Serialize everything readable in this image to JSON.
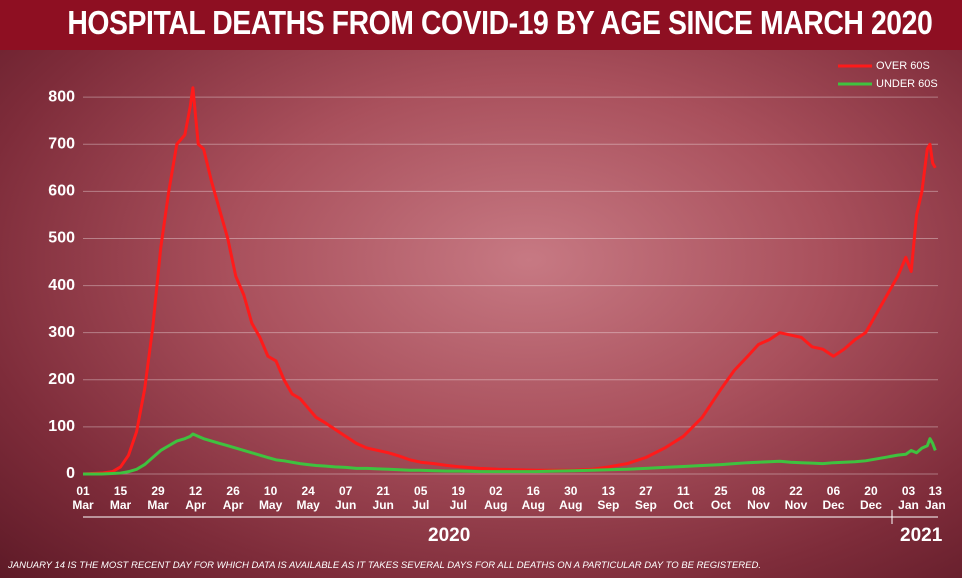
{
  "chart_data": {
    "type": "line",
    "title": "HOSPITAL DEATHS FROM COVID-19 BY AGE SINCE MARCH 2020",
    "x": [
      "2020-03-01",
      "2020-03-08",
      "2020-03-12",
      "2020-03-15",
      "2020-03-18",
      "2020-03-21",
      "2020-03-24",
      "2020-03-27",
      "2020-03-30",
      "2020-04-02",
      "2020-04-05",
      "2020-04-08",
      "2020-04-10",
      "2020-04-11",
      "2020-04-13",
      "2020-04-15",
      "2020-04-18",
      "2020-04-21",
      "2020-04-24",
      "2020-04-27",
      "2020-04-30",
      "2020-05-03",
      "2020-05-06",
      "2020-05-09",
      "2020-05-12",
      "2020-05-15",
      "2020-05-18",
      "2020-05-21",
      "2020-05-24",
      "2020-05-27",
      "2020-05-30",
      "2020-06-03",
      "2020-06-07",
      "2020-06-11",
      "2020-06-15",
      "2020-06-19",
      "2020-06-23",
      "2020-06-27",
      "2020-07-01",
      "2020-07-05",
      "2020-07-10",
      "2020-07-15",
      "2020-07-20",
      "2020-07-27",
      "2020-08-03",
      "2020-08-10",
      "2020-08-17",
      "2020-08-24",
      "2020-08-31",
      "2020-09-07",
      "2020-09-13",
      "2020-09-20",
      "2020-09-27",
      "2020-10-04",
      "2020-10-11",
      "2020-10-18",
      "2020-10-25",
      "2020-10-30",
      "2020-11-04",
      "2020-11-08",
      "2020-11-12",
      "2020-11-16",
      "2020-11-20",
      "2020-11-24",
      "2020-11-28",
      "2020-12-02",
      "2020-12-06",
      "2020-12-10",
      "2020-12-14",
      "2020-12-18",
      "2020-12-22",
      "2020-12-26",
      "2020-12-30",
      "2021-01-02",
      "2021-01-04",
      "2021-01-06",
      "2021-01-08",
      "2021-01-10",
      "2021-01-11",
      "2021-01-12",
      "2021-01-13"
    ],
    "series": [
      {
        "name": "OVER 60S",
        "color": "#ff1a1a",
        "values": [
          0,
          2,
          5,
          15,
          40,
          90,
          180,
          310,
          480,
          600,
          700,
          720,
          780,
          820,
          700,
          690,
          620,
          560,
          500,
          420,
          380,
          320,
          290,
          250,
          240,
          200,
          170,
          160,
          140,
          120,
          110,
          95,
          80,
          65,
          55,
          50,
          45,
          38,
          30,
          25,
          22,
          18,
          15,
          12,
          10,
          9,
          8,
          8,
          8,
          10,
          15,
          22,
          35,
          55,
          80,
          120,
          180,
          220,
          250,
          275,
          285,
          300,
          295,
          290,
          270,
          265,
          250,
          265,
          285,
          300,
          340,
          380,
          420,
          460,
          430,
          550,
          600,
          690,
          700,
          660,
          650
        ]
      },
      {
        "name": "UNDER 60S",
        "color": "#3fc23f",
        "values": [
          0,
          0,
          1,
          2,
          5,
          10,
          20,
          35,
          50,
          60,
          70,
          75,
          80,
          85,
          80,
          75,
          70,
          65,
          60,
          55,
          50,
          45,
          40,
          35,
          30,
          28,
          25,
          22,
          20,
          18,
          17,
          15,
          14,
          12,
          12,
          11,
          10,
          9,
          8,
          8,
          7,
          6,
          6,
          5,
          5,
          5,
          5,
          6,
          7,
          8,
          9,
          10,
          12,
          14,
          16,
          18,
          20,
          22,
          24,
          25,
          26,
          27,
          25,
          24,
          23,
          22,
          24,
          25,
          26,
          28,
          32,
          36,
          40,
          42,
          50,
          45,
          55,
          60,
          75,
          65,
          50
        ]
      }
    ],
    "xlim": [
      "2020-03-01",
      "2021-01-14"
    ],
    "xticks": [
      {
        "value": "2020-03-01",
        "label": "01 Mar"
      },
      {
        "value": "2020-03-15",
        "label": "15 Mar"
      },
      {
        "value": "2020-03-29",
        "label": "29 Mar"
      },
      {
        "value": "2020-04-12",
        "label": "12 Apr"
      },
      {
        "value": "2020-04-26",
        "label": "26 Apr"
      },
      {
        "value": "2020-05-10",
        "label": "10 May"
      },
      {
        "value": "2020-05-24",
        "label": "24 May"
      },
      {
        "value": "2020-06-07",
        "label": "07 Jun"
      },
      {
        "value": "2020-06-21",
        "label": "21 Jun"
      },
      {
        "value": "2020-07-05",
        "label": "05 Jul"
      },
      {
        "value": "2020-07-19",
        "label": "19 Jul"
      },
      {
        "value": "2020-08-02",
        "label": "02 Aug"
      },
      {
        "value": "2020-08-16",
        "label": "16 Aug"
      },
      {
        "value": "2020-08-30",
        "label": "30 Aug"
      },
      {
        "value": "2020-09-13",
        "label": "13 Sep"
      },
      {
        "value": "2020-09-27",
        "label": "27 Sep"
      },
      {
        "value": "2020-10-11",
        "label": "11 Oct"
      },
      {
        "value": "2020-10-25",
        "label": "25 Oct"
      },
      {
        "value": "2020-11-08",
        "label": "08 Nov"
      },
      {
        "value": "2020-11-22",
        "label": "22 Nov"
      },
      {
        "value": "2020-12-06",
        "label": "06 Dec"
      },
      {
        "value": "2020-12-20",
        "label": "20 Dec"
      },
      {
        "value": "2021-01-03",
        "label": "03 Jan"
      },
      {
        "value": "2021-01-13",
        "label": "13 Jan"
      }
    ],
    "year_labels": [
      "2020",
      "2021"
    ],
    "ylim": [
      0,
      850
    ],
    "yticks": [
      0,
      100,
      200,
      300,
      400,
      500,
      600,
      700,
      800
    ],
    "grid": true,
    "legend": "top-right",
    "note": "JANUARY 14 IS THE MOST RECENT DAY FOR WHICH DATA IS AVAILABLE AS IT TAKES SEVERAL DAYS FOR ALL DEATHS ON A PARTICULAR DAY TO BE REGISTERED."
  }
}
